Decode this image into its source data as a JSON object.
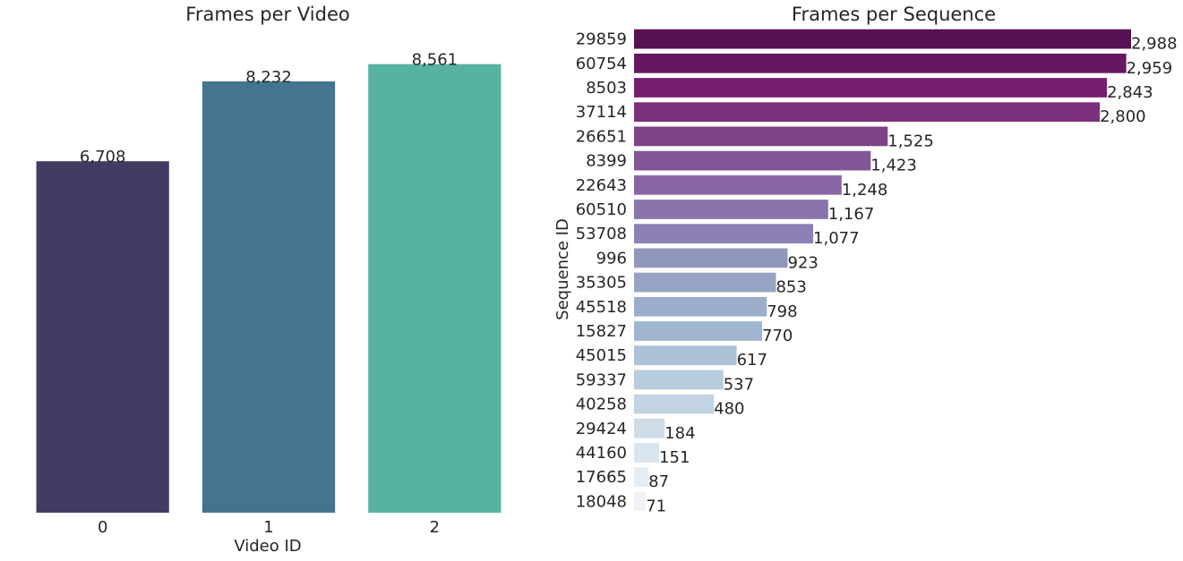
{
  "chart_data": [
    {
      "type": "bar",
      "title": "Frames per Video",
      "xlabel": "Video ID",
      "ylabel": "",
      "categories": [
        "0",
        "1",
        "2"
      ],
      "values": [
        6708,
        8232,
        8561
      ],
      "value_labels": [
        "6,708",
        "8,232",
        "8,561"
      ],
      "colors": [
        "#433c62",
        "#437591",
        "#57b2a1"
      ],
      "grid": false
    },
    {
      "type": "bar",
      "orientation": "horizontal",
      "title": "Frames per Sequence",
      "xlabel": "",
      "ylabel": "Sequence ID",
      "categories": [
        "29859",
        "60754",
        "8503",
        "37114",
        "26651",
        "8399",
        "22643",
        "60510",
        "53708",
        "996",
        "35305",
        "45518",
        "15827",
        "45015",
        "59337",
        "40258",
        "29424",
        "44160",
        "17665",
        "18048"
      ],
      "values": [
        2988,
        2959,
        2843,
        2800,
        1525,
        1423,
        1248,
        1167,
        1077,
        923,
        853,
        798,
        770,
        617,
        537,
        480,
        184,
        151,
        87,
        71
      ],
      "value_labels": [
        "2,988",
        "2,959",
        "2,843",
        "2,800",
        "1,525",
        "1,423",
        "1,248",
        "1,167",
        "1,077",
        "923",
        "853",
        "798",
        "770",
        "617",
        "537",
        "480",
        "184",
        "151",
        "87",
        "71"
      ],
      "colors": [
        "#561152",
        "#661760",
        "#771f6f",
        "#79317b",
        "#7c4487",
        "#825696",
        "#8a65a5",
        "#8b73ac",
        "#8d80b5",
        "#9196bd",
        "#97a3c4",
        "#9badca",
        "#a0b6d0",
        "#adc1d6",
        "#b7ccdc",
        "#c2d4e3",
        "#cedce8",
        "#d9e4ed",
        "#e4ecf4",
        "#eff3f7"
      ],
      "grid": false
    }
  ]
}
